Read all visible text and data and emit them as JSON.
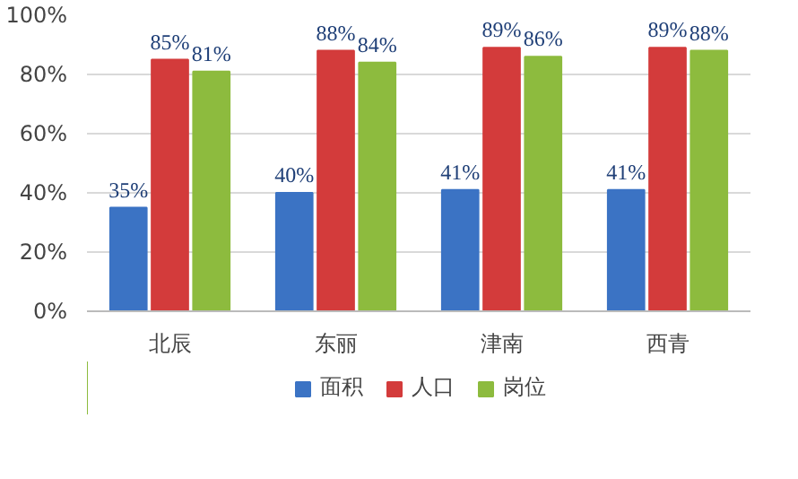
{
  "chart_data": {
    "type": "bar",
    "categories": [
      "北辰",
      "东丽",
      "津南",
      "西青"
    ],
    "series": [
      {
        "name": "面积",
        "color": "#3b73c4",
        "values": [
          35,
          40,
          41,
          41
        ],
        "value_labels": [
          "35%",
          "40%",
          "41%",
          "41%"
        ]
      },
      {
        "name": "人口",
        "color": "#d33b3b",
        "values": [
          85,
          88,
          89,
          89
        ],
        "value_labels": [
          "85%",
          "88%",
          "89%",
          "89%"
        ]
      },
      {
        "name": "岗位",
        "color": "#8dbb3e",
        "values": [
          81,
          84,
          86,
          88
        ],
        "value_labels": [
          "81%",
          "84%",
          "86%",
          "88%"
        ]
      }
    ],
    "ylim": [
      0,
      100
    ],
    "yticks": [
      {
        "value": 0,
        "label": "0%"
      },
      {
        "value": 20,
        "label": "20%"
      },
      {
        "value": 40,
        "label": "40%"
      },
      {
        "value": 60,
        "label": "60%"
      },
      {
        "value": 80,
        "label": "80%"
      },
      {
        "value": 100,
        "label": "100%"
      }
    ],
    "grid": "y",
    "legend": "bottom"
  }
}
